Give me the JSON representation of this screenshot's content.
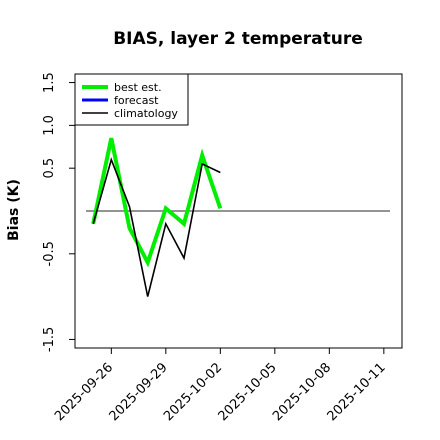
{
  "chart_data": {
    "type": "line",
    "title": "BIAS, layer 2 temperature",
    "xlabel": "",
    "ylabel": "Bias (K)",
    "ylim": [
      -1.6,
      1.6
    ],
    "yticks": [
      {
        "value": -1.5,
        "label": "-1.5"
      },
      {
        "value": -0.5,
        "label": "-0.5"
      },
      {
        "value": 0.5,
        "label": "0.5"
      },
      {
        "value": 1.0,
        "label": "1.0"
      },
      {
        "value": 1.5,
        "label": "1.5"
      }
    ],
    "xlim": [
      "2025-09-24",
      "2025-10-12"
    ],
    "xticks": [
      {
        "value": "2025-09-26",
        "label": "2025-09-26",
        "color": "#000000"
      },
      {
        "value": "2025-09-29",
        "label": "2025-09-29",
        "color": "#000000"
      },
      {
        "value": "2025-10-02",
        "label": "2025-10-02",
        "color": "#1a7f1a"
      },
      {
        "value": "2025-10-05",
        "label": "2025-10-05",
        "color": "#000000"
      },
      {
        "value": "2025-10-08",
        "label": "2025-10-08",
        "color": "#000000"
      },
      {
        "value": "2025-10-11",
        "label": "2025-10-11",
        "color": "#000000"
      }
    ],
    "zero_line": 0,
    "legend": {
      "position": "top-left"
    },
    "series": [
      {
        "name": "best est.",
        "color": "#00ee00",
        "width": 4,
        "points": [
          {
            "x": "2025-09-25",
            "y": -0.15
          },
          {
            "x": "2025-09-26",
            "y": 0.85
          },
          {
            "x": "2025-09-27",
            "y": -0.2
          },
          {
            "x": "2025-09-28",
            "y": -0.6
          },
          {
            "x": "2025-09-29",
            "y": 0.03
          },
          {
            "x": "2025-09-30",
            "y": -0.15
          },
          {
            "x": "2025-10-01",
            "y": 0.65
          },
          {
            "x": "2025-10-02",
            "y": 0.03
          }
        ]
      },
      {
        "name": "forecast",
        "color": "#0000ff",
        "width": 3,
        "points": []
      },
      {
        "name": "climatology",
        "color": "#000000",
        "width": 1.6,
        "points": [
          {
            "x": "2025-09-25",
            "y": -0.15
          },
          {
            "x": "2025-09-26",
            "y": 0.6
          },
          {
            "x": "2025-09-27",
            "y": 0.05
          },
          {
            "x": "2025-09-28",
            "y": -1.0
          },
          {
            "x": "2025-09-29",
            "y": -0.15
          },
          {
            "x": "2025-09-30",
            "y": -0.55
          },
          {
            "x": "2025-10-01",
            "y": 0.55
          },
          {
            "x": "2025-10-02",
            "y": 0.45
          }
        ]
      }
    ]
  }
}
